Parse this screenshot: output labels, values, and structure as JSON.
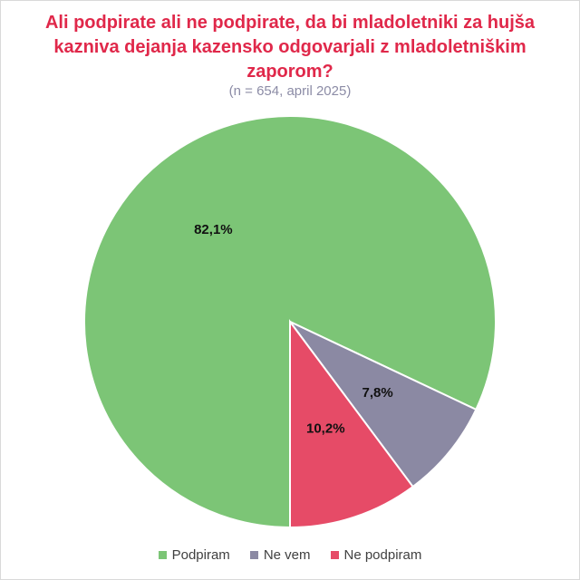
{
  "title": "Ali podpirate ali ne podpirate, da bi mladoletniki za hujša kazniva dejanja kazensko odgovarjali z mladoletniškim zaporom?",
  "subtitle": "(n = 654, april 2025)",
  "chart_data": {
    "type": "pie",
    "title": "Ali podpirate ali ne podpirate, da bi mladoletniki za hujša kazniva dejanja kazensko odgovarjali z mladoletniškim zaporom?",
    "subtitle": "(n = 654, april 2025)",
    "legend_position": "bottom",
    "slices": [
      {
        "name": "Podpiram",
        "value": 82.1,
        "label": "82,1%",
        "color": "#7cc576"
      },
      {
        "name": "Ne vem",
        "value": 7.8,
        "label": "7,8%",
        "color": "#8b89a3"
      },
      {
        "name": "Ne podpiram",
        "value": 10.2,
        "label": "10,2%",
        "color": "#e64b67"
      }
    ]
  }
}
